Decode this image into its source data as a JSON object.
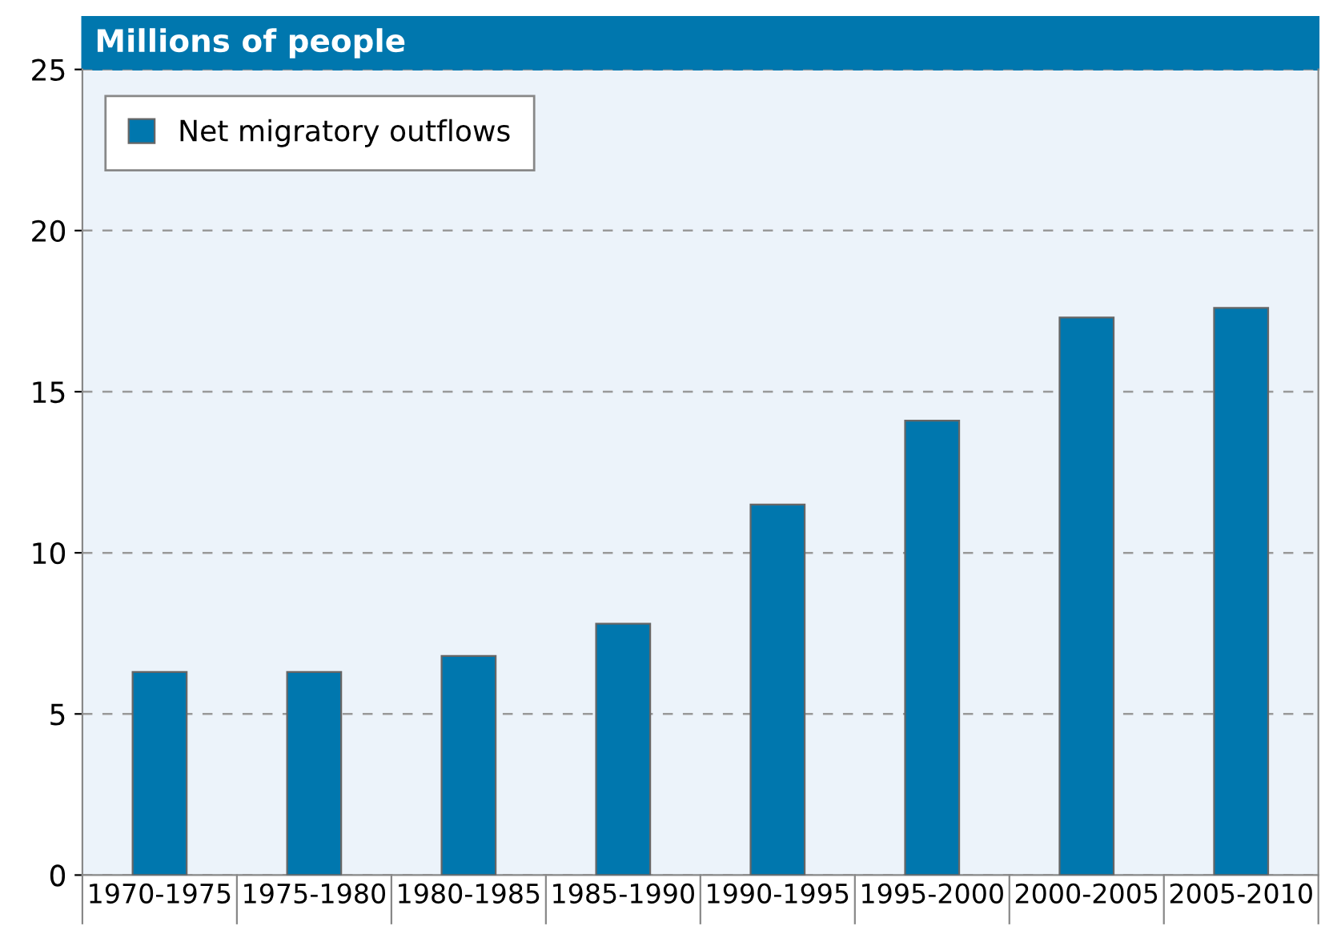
{
  "chart_data": {
    "type": "bar",
    "title": "Millions of people",
    "categories": [
      "1970-1975",
      "1975-1980",
      "1980-1985",
      "1985-1990",
      "1990-1995",
      "1995-2000",
      "2000-2005",
      "2005-2010"
    ],
    "series": [
      {
        "name": "Net migratory outflows",
        "color": "#0077ae",
        "values": [
          6.3,
          6.3,
          6.8,
          7.8,
          11.5,
          14.1,
          17.3,
          17.6
        ]
      }
    ],
    "ylim": [
      0,
      25
    ],
    "yticks": [
      0,
      5,
      10,
      15,
      20,
      25
    ],
    "grid": "y",
    "legend": "top left"
  }
}
